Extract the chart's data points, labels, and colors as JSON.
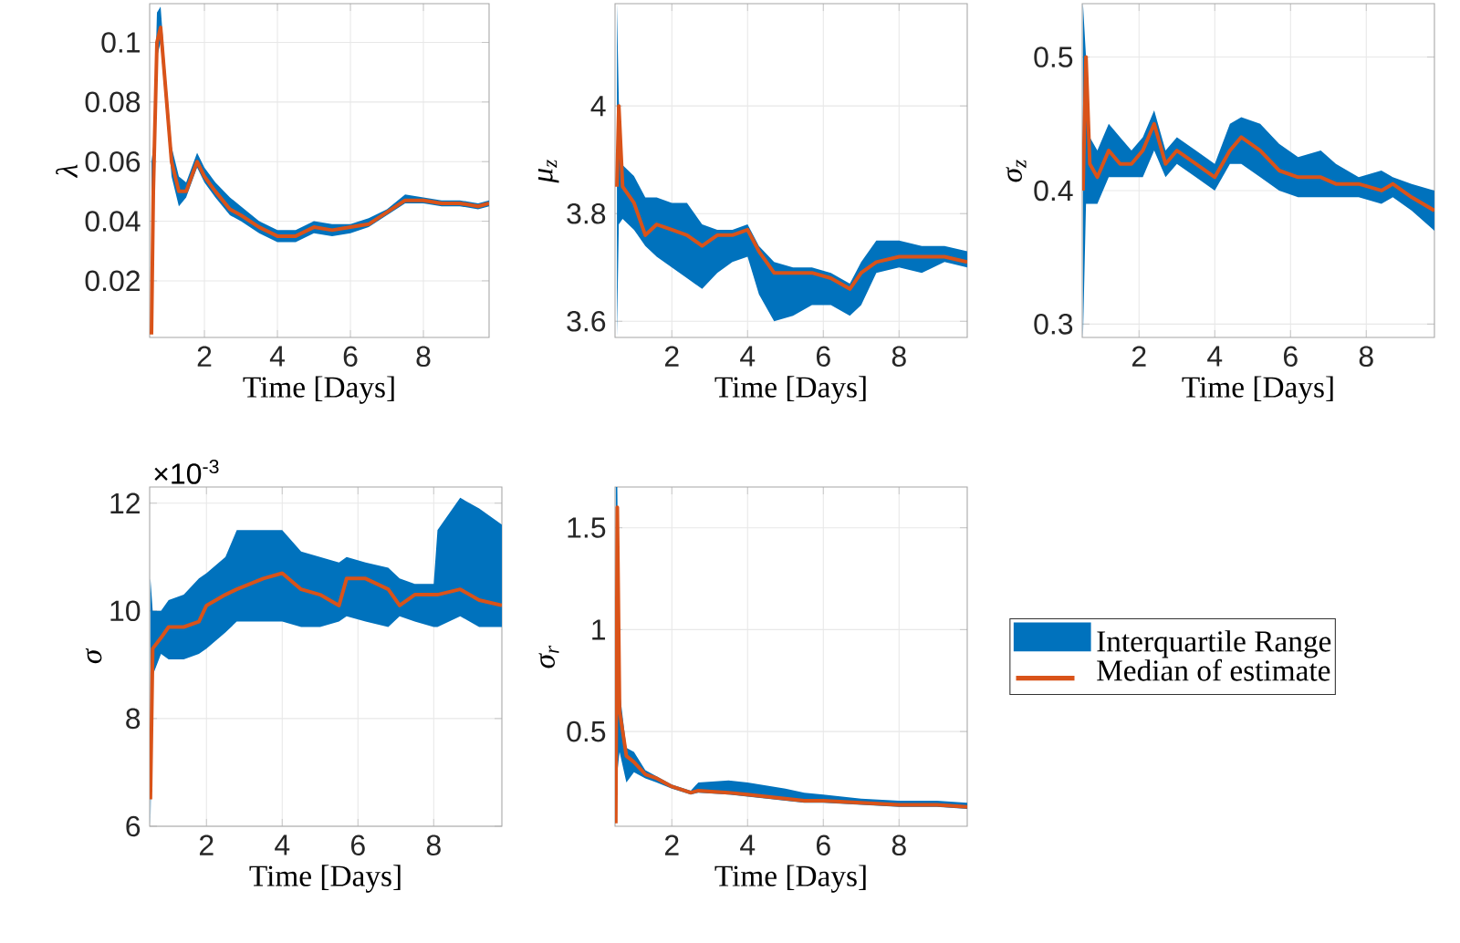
{
  "chart_data": [
    {
      "type": "line",
      "ylabel": "λ",
      "xlabel": "Time [Days]",
      "xlim": [
        0.5,
        9.8
      ],
      "ylim": [
        0.001,
        0.113
      ],
      "xticks": [
        2,
        4,
        6,
        8
      ],
      "yticks": [
        0.02,
        0.04,
        0.06,
        0.08,
        0.1
      ],
      "grid": true,
      "x": [
        0.55,
        0.6,
        0.7,
        0.8,
        0.9,
        1.1,
        1.3,
        1.5,
        1.8,
        2.0,
        2.3,
        2.7,
        3.0,
        3.5,
        4.0,
        4.5,
        5.0,
        5.5,
        6.0,
        6.5,
        7.0,
        7.5,
        8.0,
        8.5,
        9.0,
        9.5,
        9.8
      ],
      "series": [
        {
          "color": "#d95319",
          "values": [
            0.002,
            0.05,
            0.1,
            0.105,
            0.09,
            0.06,
            0.05,
            0.05,
            0.06,
            0.055,
            0.05,
            0.044,
            0.042,
            0.038,
            0.035,
            0.035,
            0.038,
            0.037,
            0.038,
            0.039,
            0.043,
            0.047,
            0.047,
            0.046,
            0.046,
            0.045,
            0.046
          ],
          "lower": [
            0.001,
            0.04,
            0.095,
            0.1,
            0.085,
            0.055,
            0.045,
            0.048,
            0.058,
            0.053,
            0.048,
            0.042,
            0.04,
            0.036,
            0.033,
            0.033,
            0.036,
            0.035,
            0.036,
            0.038,
            0.042,
            0.046,
            0.046,
            0.045,
            0.045,
            0.044,
            0.045
          ],
          "upper": [
            0.06,
            0.065,
            0.11,
            0.112,
            0.095,
            0.065,
            0.055,
            0.053,
            0.063,
            0.058,
            0.053,
            0.048,
            0.045,
            0.04,
            0.037,
            0.037,
            0.04,
            0.039,
            0.039,
            0.041,
            0.044,
            0.049,
            0.048,
            0.047,
            0.047,
            0.046,
            0.047
          ]
        }
      ]
    },
    {
      "type": "line",
      "ylabel": "μ$_{z}$",
      "xlabel": "Time [Days]",
      "xlim": [
        0.5,
        9.8
      ],
      "ylim": [
        3.57,
        4.19
      ],
      "xticks": [
        2,
        4,
        6,
        8
      ],
      "yticks": [
        3.6,
        3.8,
        4
      ],
      "grid": true,
      "x": [
        0.55,
        0.6,
        0.7,
        1.0,
        1.3,
        1.6,
        2.0,
        2.4,
        2.8,
        3.2,
        3.6,
        4.0,
        4.3,
        4.7,
        5.2,
        5.7,
        6.2,
        6.7,
        7.0,
        7.4,
        8.0,
        8.6,
        9.2,
        9.8
      ],
      "series": [
        {
          "color": "#d95319",
          "values": [
            3.85,
            4.0,
            3.85,
            3.82,
            3.76,
            3.78,
            3.77,
            3.76,
            3.74,
            3.76,
            3.76,
            3.77,
            3.73,
            3.69,
            3.69,
            3.69,
            3.68,
            3.66,
            3.69,
            3.71,
            3.72,
            3.72,
            3.72,
            3.71
          ],
          "lower": [
            3.57,
            3.78,
            3.79,
            3.77,
            3.74,
            3.72,
            3.7,
            3.68,
            3.66,
            3.69,
            3.71,
            3.72,
            3.65,
            3.6,
            3.61,
            3.63,
            3.63,
            3.61,
            3.63,
            3.69,
            3.7,
            3.69,
            3.71,
            3.7
          ],
          "upper": [
            4.19,
            4.01,
            3.89,
            3.87,
            3.83,
            3.83,
            3.82,
            3.82,
            3.78,
            3.77,
            3.77,
            3.78,
            3.74,
            3.71,
            3.7,
            3.7,
            3.69,
            3.67,
            3.71,
            3.75,
            3.75,
            3.74,
            3.74,
            3.73
          ]
        }
      ]
    },
    {
      "type": "line",
      "ylabel": "σ$_{z}$",
      "xlabel": "Time [Days]",
      "xlim": [
        0.5,
        9.8
      ],
      "ylim": [
        0.29,
        0.54
      ],
      "xticks": [
        2,
        4,
        6,
        8
      ],
      "yticks": [
        0.3,
        0.4,
        0.5
      ],
      "grid": true,
      "x": [
        0.52,
        0.6,
        0.7,
        0.9,
        1.2,
        1.5,
        1.8,
        2.1,
        2.4,
        2.7,
        3.0,
        3.5,
        4.0,
        4.4,
        4.7,
        5.2,
        5.7,
        6.2,
        6.8,
        7.2,
        7.8,
        8.4,
        8.7,
        9.2,
        9.8
      ],
      "series": [
        {
          "color": "#d95319",
          "values": [
            0.4,
            0.5,
            0.42,
            0.41,
            0.43,
            0.42,
            0.42,
            0.43,
            0.45,
            0.42,
            0.43,
            0.42,
            0.41,
            0.43,
            0.44,
            0.43,
            0.415,
            0.41,
            0.41,
            0.405,
            0.405,
            0.4,
            0.405,
            0.395,
            0.385
          ],
          "lower": [
            0.29,
            0.39,
            0.39,
            0.39,
            0.41,
            0.41,
            0.41,
            0.41,
            0.43,
            0.41,
            0.42,
            0.41,
            0.4,
            0.42,
            0.42,
            0.41,
            0.4,
            0.395,
            0.395,
            0.395,
            0.395,
            0.39,
            0.395,
            0.385,
            0.37
          ],
          "upper": [
            0.54,
            0.5,
            0.44,
            0.43,
            0.45,
            0.44,
            0.43,
            0.44,
            0.46,
            0.43,
            0.44,
            0.43,
            0.42,
            0.45,
            0.455,
            0.45,
            0.435,
            0.425,
            0.43,
            0.42,
            0.41,
            0.415,
            0.41,
            0.405,
            0.4
          ]
        }
      ]
    },
    {
      "type": "line",
      "ylabel": "σ",
      "xlabel": "Time [Days]",
      "annotations": [
        "×10$^{-3}$"
      ],
      "xlim": [
        0.5,
        9.8
      ],
      "ylim": [
        6,
        12.3
      ],
      "xticks": [
        2,
        4,
        6,
        8
      ],
      "yticks": [
        6,
        8,
        10,
        12
      ],
      "grid": true,
      "x": [
        0.52,
        0.58,
        0.8,
        1.0,
        1.4,
        1.8,
        2.0,
        2.5,
        2.8,
        3.5,
        4.0,
        4.5,
        5.0,
        5.5,
        5.7,
        6.2,
        6.8,
        7.1,
        7.5,
        8.0,
        8.1,
        8.7,
        9.2,
        9.8
      ],
      "series": [
        {
          "color": "#d95319",
          "values": [
            6.5,
            9.3,
            9.5,
            9.7,
            9.7,
            9.8,
            10.1,
            10.3,
            10.4,
            10.6,
            10.7,
            10.4,
            10.3,
            10.1,
            10.6,
            10.6,
            10.4,
            10.1,
            10.3,
            10.3,
            10.3,
            10.4,
            10.2,
            10.1
          ],
          "lower": [
            6,
            8.8,
            9.2,
            9.1,
            9.1,
            9.2,
            9.3,
            9.6,
            9.8,
            9.8,
            9.8,
            9.7,
            9.7,
            9.8,
            9.9,
            9.8,
            9.7,
            9.9,
            9.8,
            9.7,
            9.7,
            9.9,
            9.7,
            9.7
          ],
          "upper": [
            10.6,
            10.0,
            10.0,
            10.2,
            10.3,
            10.6,
            10.7,
            11.0,
            11.5,
            11.5,
            11.5,
            11.1,
            11.0,
            10.9,
            11.0,
            10.9,
            10.8,
            10.6,
            10.5,
            10.5,
            11.5,
            12.1,
            11.9,
            11.6
          ]
        }
      ]
    },
    {
      "type": "line",
      "ylabel": "σ$_{r}$",
      "xlabel": "Time [Days]",
      "xlim": [
        0.5,
        9.8
      ],
      "ylim": [
        0.035,
        1.7
      ],
      "xticks": [
        2,
        4,
        6,
        8
      ],
      "yticks": [
        0.5,
        1,
        1.5
      ],
      "grid": true,
      "legend": "right",
      "legend_title": "Interquartile Range",
      "x": [
        0.52,
        0.56,
        0.62,
        0.8,
        1.0,
        1.3,
        1.6,
        2.0,
        2.5,
        2.7,
        3.5,
        4.0,
        5.0,
        5.5,
        6.0,
        7.0,
        8.0,
        9.0,
        9.8
      ],
      "series": [
        {
          "name": "Median of estimate",
          "color": "#d95319",
          "values": [
            0.05,
            1.6,
            0.6,
            0.38,
            0.35,
            0.29,
            0.27,
            0.23,
            0.2,
            0.21,
            0.2,
            0.19,
            0.17,
            0.16,
            0.16,
            0.15,
            0.14,
            0.14,
            0.13
          ],
          "lower": [
            0.035,
            0.3,
            0.4,
            0.25,
            0.3,
            0.27,
            0.25,
            0.22,
            0.19,
            0.2,
            0.19,
            0.18,
            0.16,
            0.15,
            0.15,
            0.14,
            0.13,
            0.13,
            0.12
          ],
          "upper": [
            1.7,
            1.7,
            0.7,
            0.42,
            0.4,
            0.31,
            0.28,
            0.24,
            0.21,
            0.25,
            0.26,
            0.25,
            0.22,
            0.2,
            0.19,
            0.17,
            0.16,
            0.16,
            0.15
          ]
        }
      ]
    }
  ]
}
